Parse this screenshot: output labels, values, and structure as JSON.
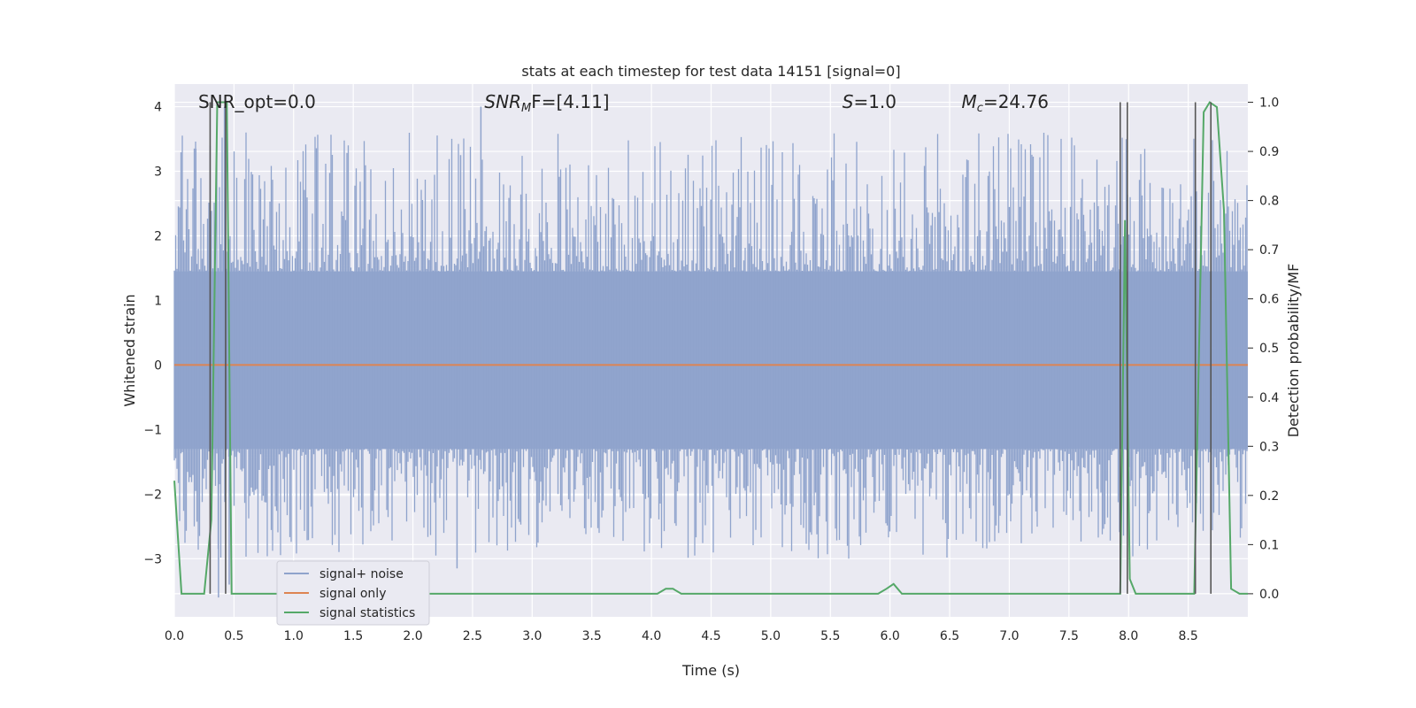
{
  "chart_data": {
    "type": "line",
    "title": "stats at each timestep for test data 14151 [signal=0]",
    "xlabel": "Time (s)",
    "ylabel_left": "Whitened strain",
    "ylabel_right": "Detection probability/MF",
    "xlim": [
      0.0,
      9.0
    ],
    "ylim_left": [
      -3.9,
      4.35
    ],
    "ylim_right": [
      -0.047,
      1.037
    ],
    "xticks": [
      0.0,
      0.5,
      1.0,
      1.5,
      2.0,
      2.5,
      3.0,
      3.5,
      4.0,
      4.5,
      5.0,
      5.5,
      6.0,
      6.5,
      7.0,
      7.5,
      8.0,
      8.5
    ],
    "xtick_labels": [
      "0.0",
      "0.5",
      "1.0",
      "1.5",
      "2.0",
      "2.5",
      "3.0",
      "3.5",
      "4.0",
      "4.5",
      "5.0",
      "5.5",
      "6.0",
      "6.5",
      "7.0",
      "7.5",
      "8.0",
      "8.5"
    ],
    "yticks_left": [
      -3,
      -2,
      -1,
      0,
      1,
      2,
      3,
      4
    ],
    "ytick_labels_left": [
      "−3",
      "−2",
      "−1",
      "0",
      "1",
      "2",
      "3",
      "4"
    ],
    "yticks_right": [
      0.0,
      0.1,
      0.2,
      0.3,
      0.4,
      0.5,
      0.6,
      0.7,
      0.8,
      0.9,
      1.0
    ],
    "ytick_labels_right": [
      "0.0",
      "0.1",
      "0.2",
      "0.3",
      "0.4",
      "0.5",
      "0.6",
      "0.7",
      "0.8",
      "0.9",
      "1.0"
    ],
    "grid": true,
    "annotations": [
      {
        "text": "SNR_opt=0.0",
        "x": 0.2
      },
      {
        "text_main": "SNR",
        "text_sub": "M",
        "text_rest": "F=[4.11]",
        "x": 2.6
      },
      {
        "text_main": "S",
        "text_rest": "=1.0",
        "x": 5.6
      },
      {
        "text_main": "M",
        "text_sub": "c",
        "text_rest": "=24.76",
        "x": 6.6
      }
    ],
    "noise": {
      "name": "signal+ noise",
      "color": "#8fa3cc",
      "band": [
        -1.3,
        1.45
      ],
      "peak_high": 4.0,
      "peak_low": -3.6
    },
    "series": [
      {
        "name": "signal only",
        "color": "#dd8452",
        "x": [
          0.0,
          9.0
        ],
        "y": [
          0.0,
          0.0
        ],
        "axis": "left"
      },
      {
        "name": "signal statistics",
        "color": "#55a868",
        "axis": "right",
        "x": [
          0.0,
          0.06,
          0.12,
          0.18,
          0.25,
          0.31,
          0.36,
          0.4,
          0.44,
          0.48,
          0.52,
          0.57,
          3.9,
          4.05,
          4.12,
          4.18,
          4.25,
          5.9,
          5.97,
          6.03,
          6.1,
          6.18,
          7.87,
          7.93,
          7.97,
          8.01,
          8.06,
          8.12,
          8.3,
          8.55,
          8.63,
          8.68,
          8.74,
          8.8,
          8.86,
          8.93,
          9.0
        ],
        "y": [
          0.23,
          0.0,
          0.0,
          0.0,
          0.0,
          0.15,
          1.0,
          1.0,
          1.0,
          0.0,
          0.0,
          0.0,
          0.0,
          0.0,
          0.01,
          0.01,
          0.0,
          0.0,
          0.01,
          0.02,
          0.0,
          0.0,
          0.0,
          0.0,
          0.76,
          0.03,
          0.0,
          0.0,
          0.0,
          0.0,
          0.98,
          1.0,
          0.99,
          0.78,
          0.01,
          0.0,
          0.0
        ]
      }
    ],
    "vlines": {
      "color": "#555555",
      "x": [
        0.3,
        0.43,
        7.93,
        7.99,
        8.56,
        8.69
      ],
      "ymin": 0.0,
      "ymax": 1.0
    },
    "legend": {
      "placement": "lower-left",
      "entries": [
        {
          "label": "signal+ noise",
          "color": "#8fa3cc"
        },
        {
          "label": "signal only",
          "color": "#dd8452"
        },
        {
          "label": "signal statistics",
          "color": "#55a868"
        }
      ]
    },
    "colors": {
      "plot_background": "#eaeaf2",
      "grid": "#ffffff"
    }
  }
}
